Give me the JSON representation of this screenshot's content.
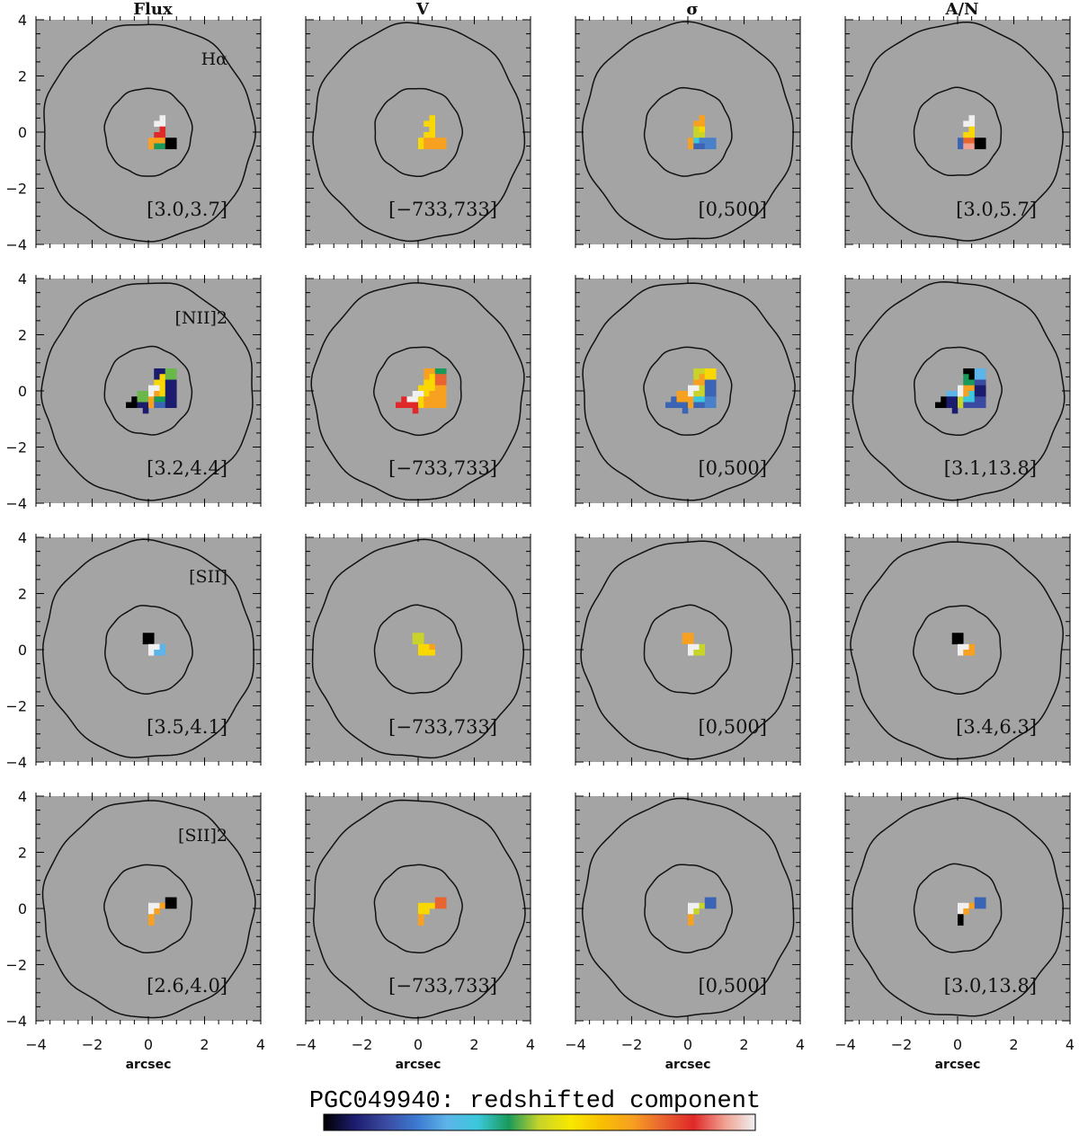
{
  "chart_data": {
    "type": "heatmap",
    "title": "PGC049940: redshifted component",
    "xlabel": "arcsec",
    "columns": [
      "Flux",
      "V",
      "σ",
      "A/N"
    ],
    "rows": [
      "Hα",
      "[NII]2",
      "[SII]",
      "[SII]2"
    ],
    "xlim": [
      -4,
      4
    ],
    "ylim": [
      -4,
      4
    ],
    "xticks": [
      "−4",
      "−2",
      "0",
      "2",
      "4"
    ],
    "yticks": [
      "4",
      "2",
      "0",
      "−2",
      "−4"
    ],
    "tick_values": [
      -4,
      -2,
      0,
      2,
      4
    ],
    "cell_size_arcsec": 0.2,
    "contour_radii_arcsec": [
      1.55,
      3.75
    ],
    "background_color": "#a4a4a4",
    "palette": {
      "K": "#000000",
      "N": "#1c1c6e",
      "M": "#3a4aa0",
      "B": "#3c64b4",
      "b": "#4a80c8",
      "S": "#5cb4e8",
      "C": "#3cc8dc",
      "T": "#1a9a5a",
      "G": "#6ab84a",
      "L": "#c8d42a",
      "Y": "#f8d800",
      "O": "#f8a020",
      "R": "#e86430",
      "r": "#e02828",
      "P": "#f0a090",
      "W": "#f0f0f0"
    },
    "colorbar": [
      "#000000",
      "#1c1c6e",
      "#3a4aa0",
      "#3c78d0",
      "#5cb4e8",
      "#3cc8dc",
      "#1a9a5a",
      "#c8d42a",
      "#f8e800",
      "#f8c000",
      "#f8a020",
      "#e86430",
      "#e02828",
      "#f0a090",
      "#f0f0f0"
    ],
    "panels": [
      {
        "row": 0,
        "col": 0,
        "range_label": "[3.0,3.7]",
        "x0": 0.0,
        "y0": 0.6,
        "grid": [
          "..W..",
          ".WW..",
          "..r..",
          ".rr..",
          "OOOKK",
          "OTTKK"
        ]
      },
      {
        "row": 0,
        "col": 1,
        "range_label": "[−733,733]",
        "x0": 0.0,
        "y0": 0.6,
        "grid": [
          "..Y..",
          ".YY..",
          "..Y..",
          ".YY..",
          "YOOOO",
          "YOOOO"
        ]
      },
      {
        "row": 0,
        "col": 2,
        "range_label": "[0,500]",
        "x0": 0.0,
        "y0": 0.6,
        "grid": [
          "..O..",
          ".OO..",
          ".LY..",
          ".LL..",
          "OCbbb",
          "OBBbb"
        ]
      },
      {
        "row": 0,
        "col": 3,
        "range_label": "[3.0,5.7]",
        "x0": 0.0,
        "y0": 0.6,
        "grid": [
          "..W..",
          ".WW..",
          "..Y..",
          ".YY..",
          "BRRKK",
          "BPPKK"
        ]
      },
      {
        "row": 1,
        "col": 0,
        "range_label": "[3.2,4.4]",
        "x0": -0.8,
        "y0": 0.8,
        "grid": [
          ".....NNGG",
          ".....NYGG",
          ".....YYNN",
          "....WWYNN",
          "..GGWOYNN",
          ".KGGOTTNN",
          "KKNNOBBNN",
          "...N....."
        ]
      },
      {
        "row": 1,
        "col": 1,
        "range_label": "[−733,733]",
        "x0": -0.8,
        "y0": 0.8,
        "grid": [
          ".....OOTT",
          ".....OYRR",
          ".....YYRR",
          "....YYYOO",
          "...WWYOOO",
          ".rWWYOOOO",
          "rrrrYOOOO",
          "...r....."
        ]
      },
      {
        "row": 1,
        "col": 2,
        "range_label": "[0,500]",
        "x0": -0.8,
        "y0": 0.8,
        "grid": [
          ".....LLYY",
          ".....LOYY",
          ".....OOBB",
          "....WWLBB",
          "..OOWLLBB",
          ".BOOOCCbb",
          "BBBBOBBbb",
          "...B....."
        ]
      },
      {
        "row": 1,
        "col": 3,
        "range_label": "[3.1,13.8]",
        "x0": -0.8,
        "y0": 0.8,
        "grid": [
          ".....KKSS",
          ".....TKSS",
          ".....TTMM",
          "....WOONN",
          "..SSWOCNN",
          ".KNNLCCMM",
          "KKNNLMMMM",
          "...N....."
        ]
      },
      {
        "row": 2,
        "col": 0,
        "range_label": "[3.5,4.1]",
        "x0": -0.2,
        "y0": 0.6,
        "grid": [
          "KK..",
          "KK..",
          ".WWS",
          ".WSS"
        ]
      },
      {
        "row": 2,
        "col": 1,
        "range_label": "[−733,733]",
        "x0": -0.2,
        "y0": 0.6,
        "grid": [
          "LL..",
          "LL..",
          ".YYO",
          ".YYY"
        ]
      },
      {
        "row": 2,
        "col": 2,
        "range_label": "[0,500]",
        "x0": -0.2,
        "y0": 0.6,
        "grid": [
          "OO..",
          "OO..",
          ".WWL",
          ".WLL"
        ]
      },
      {
        "row": 2,
        "col": 3,
        "range_label": "[3.4,6.3]",
        "x0": -0.2,
        "y0": 0.6,
        "grid": [
          "KK..",
          "KK..",
          ".WWO",
          ".WOO"
        ]
      },
      {
        "row": 3,
        "col": 0,
        "range_label": "[2.6,4.0]",
        "x0": 0.0,
        "y0": 0.4,
        "grid": [
          "...KK",
          "WWOKK",
          "WO...",
          "O....",
          "O...."
        ]
      },
      {
        "row": 3,
        "col": 1,
        "range_label": "[−733,733]",
        "x0": 0.0,
        "y0": 0.4,
        "grid": [
          "...RR",
          "YYYRR",
          "YY...",
          "O....",
          "O...."
        ]
      },
      {
        "row": 3,
        "col": 2,
        "range_label": "[0,500]",
        "x0": 0.0,
        "y0": 0.4,
        "grid": [
          "...BB",
          "WWLBB",
          "WL...",
          "O....",
          "O...."
        ]
      },
      {
        "row": 3,
        "col": 3,
        "range_label": "[3.0,13.8]",
        "x0": 0.0,
        "y0": 0.4,
        "grid": [
          "...BB",
          "WWOBB",
          "WO...",
          "K....",
          "K...."
        ]
      }
    ]
  }
}
